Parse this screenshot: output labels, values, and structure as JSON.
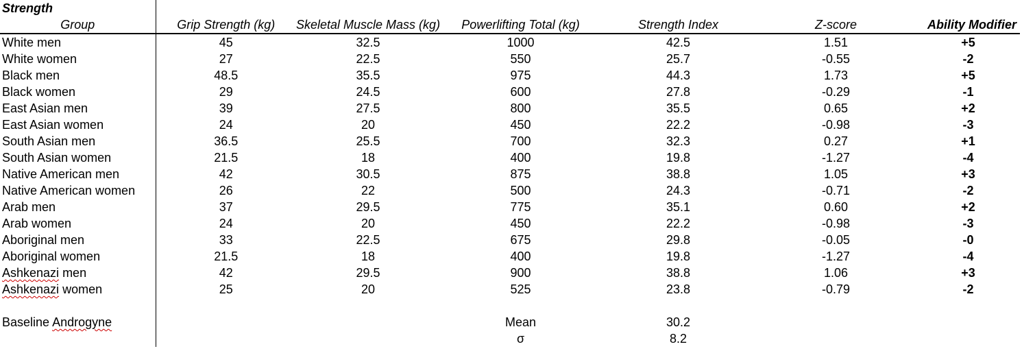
{
  "title": "Strength",
  "columns": [
    {
      "key": "group",
      "label": "Group"
    },
    {
      "key": "grip",
      "label": "Grip Strength (kg)"
    },
    {
      "key": "muscle",
      "label": "Skeletal Muscle Mass (kg)"
    },
    {
      "key": "total",
      "label": "Powerlifting Total (kg)"
    },
    {
      "key": "index",
      "label": "Strength Index"
    },
    {
      "key": "z",
      "label": "Z-score"
    },
    {
      "key": "mod",
      "label": "Ability Modifier"
    }
  ],
  "rows": [
    {
      "group": "White men",
      "grip": "45",
      "muscle": "32.5",
      "total": "1000",
      "index": "42.5",
      "z": "1.51",
      "mod": "+5"
    },
    {
      "group": "White women",
      "grip": "27",
      "muscle": "22.5",
      "total": "550",
      "index": "25.7",
      "z": "-0.55",
      "mod": "-2"
    },
    {
      "group": "Black men",
      "grip": "48.5",
      "muscle": "35.5",
      "total": "975",
      "index": "44.3",
      "z": "1.73",
      "mod": "+5"
    },
    {
      "group": "Black women",
      "grip": "29",
      "muscle": "24.5",
      "total": "600",
      "index": "27.8",
      "z": "-0.29",
      "mod": "-1"
    },
    {
      "group": "East Asian men",
      "grip": "39",
      "muscle": "27.5",
      "total": "800",
      "index": "35.5",
      "z": "0.65",
      "mod": "+2"
    },
    {
      "group": "East Asian women",
      "grip": "24",
      "muscle": "20",
      "total": "450",
      "index": "22.2",
      "z": "-0.98",
      "mod": "-3"
    },
    {
      "group": "South Asian men",
      "grip": "36.5",
      "muscle": "25.5",
      "total": "700",
      "index": "32.3",
      "z": "0.27",
      "mod": "+1"
    },
    {
      "group": "South Asian women",
      "grip": "21.5",
      "muscle": "18",
      "total": "400",
      "index": "19.8",
      "z": "-1.27",
      "mod": "-4"
    },
    {
      "group": "Native American men",
      "grip": "42",
      "muscle": "30.5",
      "total": "875",
      "index": "38.8",
      "z": "1.05",
      "mod": "+3"
    },
    {
      "group": "Native American women",
      "grip": "26",
      "muscle": "22",
      "total": "500",
      "index": "24.3",
      "z": "-0.71",
      "mod": "-2"
    },
    {
      "group": "Arab men",
      "grip": "37",
      "muscle": "29.5",
      "total": "775",
      "index": "35.1",
      "z": "0.60",
      "mod": "+2"
    },
    {
      "group": "Arab women",
      "grip": "24",
      "muscle": "20",
      "total": "450",
      "index": "22.2",
      "z": "-0.98",
      "mod": "-3"
    },
    {
      "group": "Aboriginal men",
      "grip": "33",
      "muscle": "22.5",
      "total": "675",
      "index": "29.8",
      "z": "-0.05",
      "mod": "-0"
    },
    {
      "group": "Aboriginal women",
      "grip": "21.5",
      "muscle": "18",
      "total": "400",
      "index": "19.8",
      "z": "-1.27",
      "mod": "-4"
    },
    {
      "group": "Ashkenazi men",
      "grip": "42",
      "muscle": "29.5",
      "total": "900",
      "index": "38.8",
      "z": "1.06",
      "mod": "+3"
    },
    {
      "group": "Ashkenazi women",
      "grip": "25",
      "muscle": "20",
      "total": "525",
      "index": "23.8",
      "z": "-0.79",
      "mod": "-2"
    }
  ],
  "summary": {
    "baseline_label": "Baseline Androgyne",
    "mean_label": "Mean",
    "mean_value": "30.2",
    "sigma_label": "σ",
    "sigma_value": "8.2"
  },
  "misspelled_words": [
    "Ashkenazi",
    "Androgyne"
  ],
  "colors": {
    "text": "#000000",
    "border": "#000000",
    "background": "#ffffff",
    "spellcheck_underline": "#cc0000"
  }
}
